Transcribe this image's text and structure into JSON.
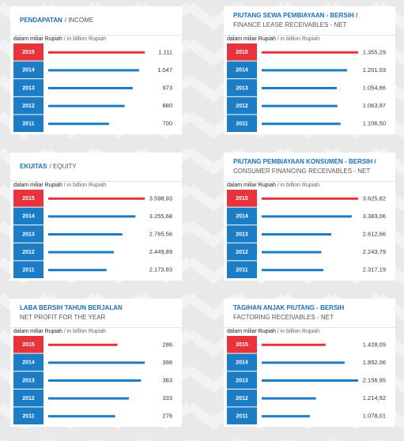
{
  "chart_data": [
    {
      "type": "bar",
      "title": "PENDAPATAN",
      "subtitle": "/ INCOME",
      "unit": "dalam miliar Rupiah",
      "unit_en": "/ in billion Rupiah",
      "categories": [
        "2015",
        "2014",
        "2013",
        "2012",
        "2011"
      ],
      "values": [
        1111,
        1047,
        973,
        880,
        700
      ],
      "value_labels": [
        "1.111",
        "1.047",
        "973",
        "880",
        "700"
      ],
      "colors": [
        "#e8323c",
        "#1b7dc5",
        "#1b7dc5",
        "#1b7dc5",
        "#1b7dc5"
      ]
    },
    {
      "type": "bar",
      "title": "PIUTANG SEWA PEMBIAYAAN - BERSIH /",
      "subtitle": "FINANCE LEASE RECEIVABLES - NET",
      "unit": "dalam miliar Rupiah",
      "unit_en": "/ in billion Rupiah",
      "categories": [
        "2015",
        "2014",
        "2013",
        "2012",
        "2011"
      ],
      "values": [
        1355.29,
        1201.03,
        1054.66,
        1063.97,
        1106.5
      ],
      "value_labels": [
        "1.355,29",
        "1.201,03",
        "1.054,66",
        "1.063,97",
        "1.106,50"
      ],
      "colors": [
        "#e8323c",
        "#1b7dc5",
        "#1b7dc5",
        "#1b7dc5",
        "#1b7dc5"
      ]
    },
    {
      "type": "bar",
      "title": "EKUITAS",
      "subtitle": "/ EQUITY",
      "unit": "dalam miliar Rupiah",
      "unit_en": "/ in billion Rupiah",
      "categories": [
        "2015",
        "2014",
        "2013",
        "2012",
        "2011"
      ],
      "values": [
        3598.93,
        3255.68,
        2765.56,
        2449.89,
        2173.83
      ],
      "value_labels": [
        "3.598,93",
        "3.255,68",
        "2.765,56",
        "2.449,89",
        "2.173,83"
      ],
      "colors": [
        "#e8323c",
        "#1b7dc5",
        "#1b7dc5",
        "#1b7dc5",
        "#1b7dc5"
      ]
    },
    {
      "type": "bar",
      "title": "PIUTANG PEMBIAYAAN KONSUMEN - BERSIH /",
      "subtitle": "CONSUMER FINANCING RECEIVABLES - NET",
      "unit": "dalam miliar Rupiah",
      "unit_en": "/ in billion Rupiah",
      "categories": [
        "2015",
        "2014",
        "2013",
        "2012",
        "2011"
      ],
      "values": [
        3625.82,
        3383.06,
        2612.66,
        2243.79,
        2317.19
      ],
      "value_labels": [
        "3.625,82",
        "3.383,06",
        "2.612,66",
        "2.243,79",
        "2.317,19"
      ],
      "colors": [
        "#e8323c",
        "#1b7dc5",
        "#1b7dc5",
        "#1b7dc5",
        "#1b7dc5"
      ]
    },
    {
      "type": "bar",
      "title": "LABA BERSIH TAHUN BERJALAN",
      "subtitle": "NET PROFIT FOR THE YEAR",
      "unit": "dalam miliar Rupiah",
      "unit_en": "/ in billion Rupiah",
      "categories": [
        "2015",
        "2014",
        "2013",
        "2012",
        "2011"
      ],
      "values": [
        286,
        398,
        383,
        333,
        276
      ],
      "value_labels": [
        "286",
        "398",
        "383",
        "333",
        "276"
      ],
      "colors": [
        "#e8323c",
        "#1b7dc5",
        "#1b7dc5",
        "#1b7dc5",
        "#1b7dc5"
      ]
    },
    {
      "type": "bar",
      "title": "TAGIHAN ANJAK PIUTANG - BERSIH",
      "subtitle": "FACTORING RECEIVABLES - NET",
      "unit": "dalam miliar Rupiah",
      "unit_en": "/ in billion Rupiah",
      "categories": [
        "2015",
        "2014",
        "2013",
        "2012",
        "2011"
      ],
      "values": [
        1428.09,
        1852.06,
        2156.95,
        1214.92,
        1078.01
      ],
      "value_labels": [
        "1.428,09",
        "1.852,06",
        "2.156,95",
        "1.214,92",
        "1.078,01"
      ],
      "colors": [
        "#e8323c",
        "#1b7dc5",
        "#1b7dc5",
        "#1b7dc5",
        "#1b7dc5"
      ]
    }
  ]
}
